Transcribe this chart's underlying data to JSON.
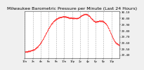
{
  "title": "Milwaukee Barometric Pressure per Minute (Last 24 Hours)",
  "background_color": "#f0f0f0",
  "plot_bg_color": "#ffffff",
  "grid_color": "#aaaaaa",
  "line_color": "#ff0000",
  "title_fontsize": 4.5,
  "tick_fontsize": 3.0,
  "y_min": 29.35,
  "y_max": 30.12,
  "y_ticks": [
    29.4,
    29.5,
    29.6,
    29.7,
    29.8,
    29.9,
    30.0,
    30.1
  ],
  "num_points": 1440
}
